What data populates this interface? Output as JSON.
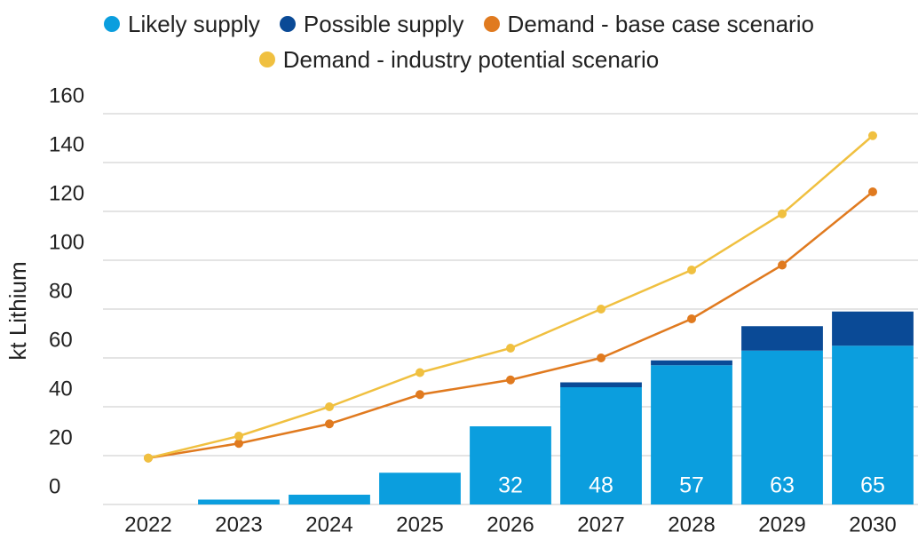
{
  "chart_data": {
    "type": "stacked-bar-line",
    "y_label": "kt Lithium",
    "categories": [
      "2022",
      "2023",
      "2024",
      "2025",
      "2026",
      "2027",
      "2028",
      "2029",
      "2030"
    ],
    "series": [
      {
        "name": "Likely supply",
        "color": "#0b9ede",
        "kind": "bar",
        "values": [
          0,
          2,
          4,
          13,
          32,
          48,
          57,
          63,
          65
        ],
        "value_labels": [
          null,
          null,
          null,
          null,
          32,
          48,
          57,
          63,
          65
        ]
      },
      {
        "name": "Possible supply",
        "color": "#0a4a96",
        "kind": "bar",
        "values": [
          0,
          0,
          0,
          0,
          0,
          2,
          2,
          10,
          14
        ]
      },
      {
        "name": "Demand - base case scenario",
        "color": "#e07a1f",
        "kind": "line",
        "values": [
          19,
          25,
          33,
          45,
          51,
          60,
          76,
          98,
          128
        ]
      },
      {
        "name": "Demand - industry potential scenario",
        "color": "#f0c040",
        "kind": "line",
        "values": [
          19,
          28,
          40,
          54,
          64,
          80,
          96,
          119,
          151
        ]
      }
    ],
    "ylim": [
      0,
      160
    ],
    "yticks": [
      0,
      20,
      40,
      60,
      80,
      100,
      120,
      140,
      160
    ],
    "grid": true
  }
}
